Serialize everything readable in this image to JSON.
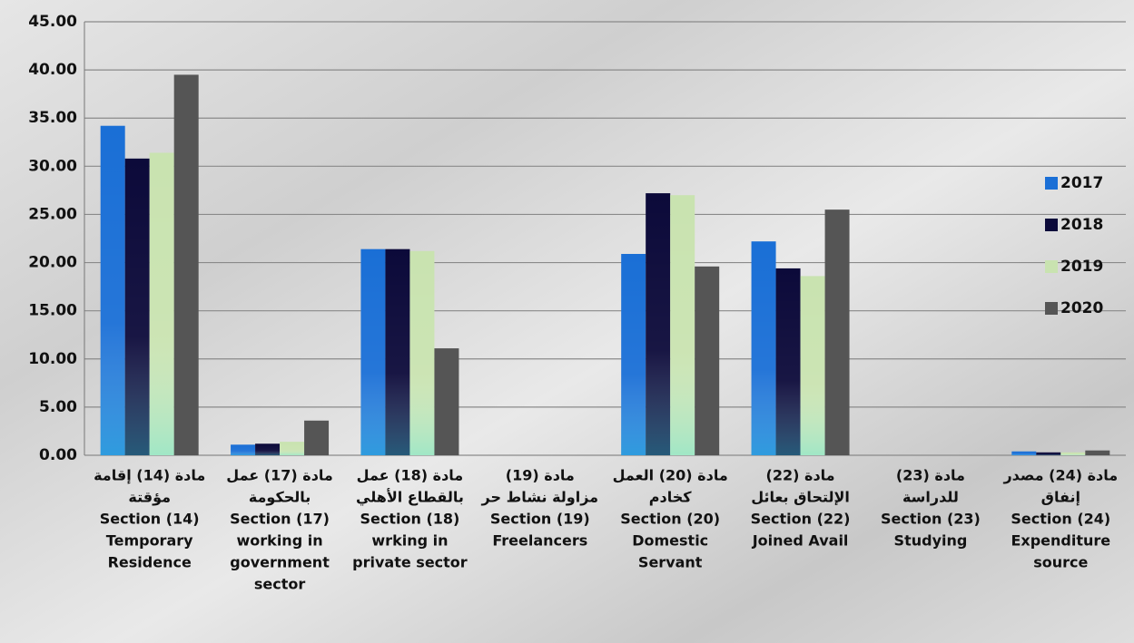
{
  "chart_data": {
    "type": "bar",
    "categories": [
      [
        "مادة (14) إقامة",
        "مؤقتة",
        "Section (14)",
        "Temporary",
        "Residence"
      ],
      [
        "مادة (17) عمل",
        "بالحكومة",
        "Section (17)",
        "working in",
        "government",
        "sector"
      ],
      [
        "مادة (18) عمل",
        "بالقطاع الأهلي",
        "Section (18)",
        "wrking in",
        "private sector"
      ],
      [
        "مادة (19)",
        "مزاولة نشاط حر",
        "Section (19)",
        "Freelancers"
      ],
      [
        "مادة (20) العمل",
        "كخادم",
        "Section (20)",
        "Domestic",
        "Servant"
      ],
      [
        "مادة (22)",
        "الإلتحاق بعائل",
        "Section (22)",
        "Joined Avail"
      ],
      [
        "مادة (23)",
        "للدراسة",
        "Section (23)",
        "Studying"
      ],
      [
        "مادة (24) مصدر",
        "إنفاق",
        "Section (24)",
        "Expenditure",
        "source"
      ]
    ],
    "series": [
      {
        "name": "2017",
        "color": "#1a6fd6",
        "values": [
          34.2,
          1.1,
          21.4,
          0,
          20.9,
          22.2,
          0,
          0.4
        ]
      },
      {
        "name": "2018",
        "color": "#0c0a3a",
        "values": [
          30.8,
          1.2,
          21.4,
          0,
          27.2,
          19.4,
          0,
          0.3
        ]
      },
      {
        "name": "2019",
        "color": "#c9e3b0",
        "values": [
          31.4,
          1.4,
          21.2,
          0,
          27.0,
          18.6,
          0,
          0.3
        ]
      },
      {
        "name": "2020",
        "color": "#555555",
        "values": [
          39.5,
          3.6,
          11.1,
          0,
          19.6,
          25.5,
          0,
          0.5
        ]
      }
    ],
    "ylim": [
      0,
      45
    ],
    "yticks": [
      {
        "value": 0,
        "label": "0.00"
      },
      {
        "value": 5,
        "label": "5.00"
      },
      {
        "value": 10,
        "label": "10.00"
      },
      {
        "value": 15,
        "label": "15.00"
      },
      {
        "value": 20,
        "label": "20.00"
      },
      {
        "value": 25,
        "label": "25.00"
      },
      {
        "value": 30,
        "label": "30.00"
      },
      {
        "value": 35,
        "label": "35.00"
      },
      {
        "value": 40,
        "label": "40.00"
      },
      {
        "value": 45,
        "label": "45.00"
      }
    ],
    "grid": true,
    "legend": "right"
  }
}
